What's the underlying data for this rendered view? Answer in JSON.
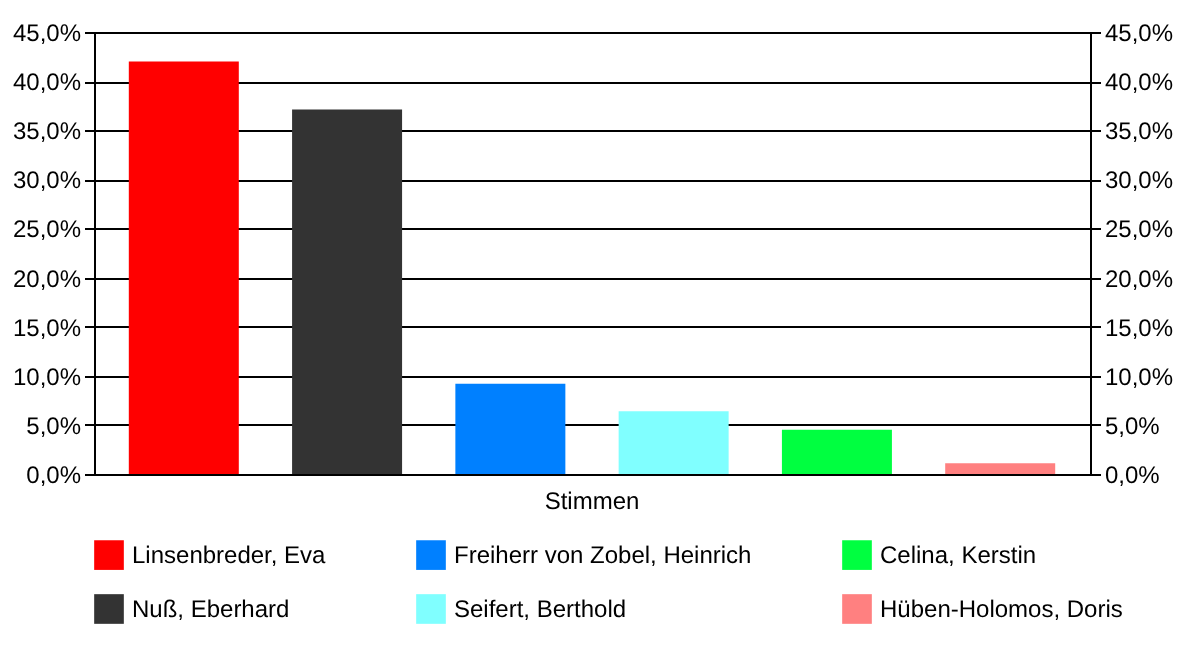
{
  "chart_data": {
    "type": "bar",
    "categories": [
      "Stimmen"
    ],
    "series": [
      {
        "name": "Linsenbreder, Eva",
        "color": "#ff0000",
        "values": [
          42.0
        ]
      },
      {
        "name": "Nuß, Eberhard",
        "color": "#333333",
        "values": [
          37.1
        ]
      },
      {
        "name": "Freiherr von Zobel, Heinrich",
        "color": "#0080ff",
        "values": [
          9.2
        ]
      },
      {
        "name": "Seifert, Berthold",
        "color": "#80ffff",
        "values": [
          6.4
        ]
      },
      {
        "name": "Celina, Kerstin",
        "color": "#00ff40",
        "values": [
          4.5
        ]
      },
      {
        "name": "Hüben-Holomos, Doris",
        "color": "#ff8080",
        "values": [
          1.1
        ]
      }
    ],
    "ylim": [
      0,
      45
    ],
    "yticks": [
      {
        "value": 0,
        "label": "0,0%"
      },
      {
        "value": 5,
        "label": "5,0%"
      },
      {
        "value": 10,
        "label": "10,0%"
      },
      {
        "value": 15,
        "label": "15,0%"
      },
      {
        "value": 20,
        "label": "20,0%"
      },
      {
        "value": 25,
        "label": "25,0%"
      },
      {
        "value": 30,
        "label": "30,0%"
      },
      {
        "value": 35,
        "label": "35,0%"
      },
      {
        "value": 40,
        "label": "40,0%"
      },
      {
        "value": 45,
        "label": "45,0%"
      }
    ],
    "grid": "y",
    "legend": "bottom"
  }
}
